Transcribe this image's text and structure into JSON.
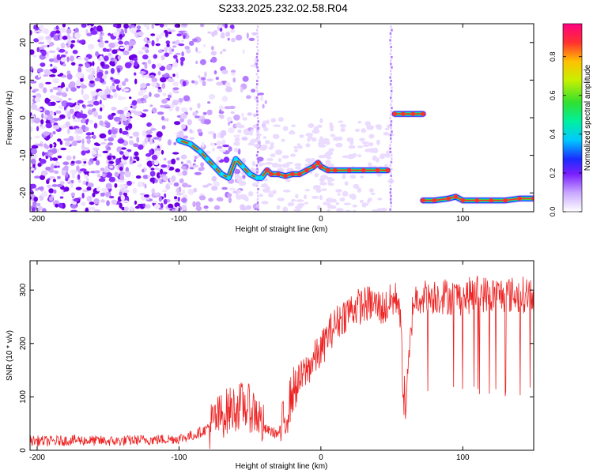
{
  "title": "S233.2025.232.02.58.R04",
  "chart_data": [
    {
      "type": "heatmap",
      "xlabel": "Height of straight line (km)",
      "ylabel": "Frequency (Hz)",
      "xlim": [
        -205,
        150
      ],
      "ylim": [
        -25,
        25
      ],
      "xticks": [
        -200,
        -100,
        0,
        100
      ],
      "yticks": [
        -20,
        -10,
        0,
        10,
        20
      ],
      "colorbar": {
        "label": "Normalized spectral amplitude",
        "range": [
          0,
          0.97
        ],
        "ticks": [
          0.0,
          0.2,
          0.4,
          0.6,
          0.8
        ]
      },
      "tracks": [
        {
          "x": [
            -100,
            -92,
            -85,
            -80,
            -75,
            -70,
            -65,
            -60,
            -55,
            -50,
            -45,
            -42,
            -38,
            -35,
            -30,
            -25,
            -20,
            -15,
            -10,
            -5,
            -2,
            0,
            5,
            10,
            20,
            30,
            40,
            47
          ],
          "y": [
            -6,
            -7,
            -9,
            -11,
            -13,
            -15,
            -16,
            -11,
            -13,
            -15,
            -16,
            -16,
            -14,
            -15,
            -15,
            -15.5,
            -15,
            -15,
            -14,
            -13,
            -12,
            -13,
            -14,
            -14,
            -14,
            -14,
            -14,
            -14
          ]
        },
        {
          "x": [
            52,
            58,
            65,
            72
          ],
          "y": [
            1,
            1,
            1,
            1
          ]
        },
        {
          "x": [
            72,
            80,
            90,
            95,
            100,
            110,
            120,
            130,
            140,
            150
          ],
          "y": [
            -22,
            -22,
            -21.5,
            -21,
            -22,
            -22,
            -22,
            -22,
            -21.5,
            -21.5
          ]
        }
      ]
    },
    {
      "type": "line",
      "xlabel": "Height of straight line (km)",
      "ylabel": "SNR (10 * v/v)",
      "xlim": [
        -205,
        150
      ],
      "ylim": [
        0,
        355
      ],
      "xticks": [
        -200,
        -100,
        0,
        100
      ],
      "yticks": [
        0,
        100,
        200,
        300
      ],
      "series": [
        {
          "color": "#ee2222",
          "x": [
            -205,
            -190,
            -175,
            -160,
            -145,
            -130,
            -115,
            -100,
            -90,
            -80,
            -75,
            -70,
            -65,
            -60,
            -55,
            -50,
            -45,
            -40,
            -35,
            -30,
            -25,
            -20,
            -15,
            -10,
            -5,
            0,
            5,
            10,
            15,
            20,
            25,
            30,
            35,
            40,
            45,
            50,
            55,
            57,
            58,
            60,
            65,
            70,
            75,
            80,
            90,
            100,
            110,
            120,
            130,
            140,
            150
          ],
          "y": [
            18,
            17,
            19,
            18,
            17,
            19,
            20,
            22,
            28,
            40,
            55,
            65,
            75,
            80,
            85,
            78,
            70,
            40,
            35,
            30,
            60,
            110,
            130,
            150,
            170,
            185,
            215,
            235,
            250,
            262,
            268,
            272,
            275,
            270,
            265,
            280,
            285,
            190,
            110,
            80,
            280,
            290,
            285,
            290,
            288,
            285,
            295,
            290,
            292,
            290,
            295
          ]
        }
      ]
    }
  ]
}
